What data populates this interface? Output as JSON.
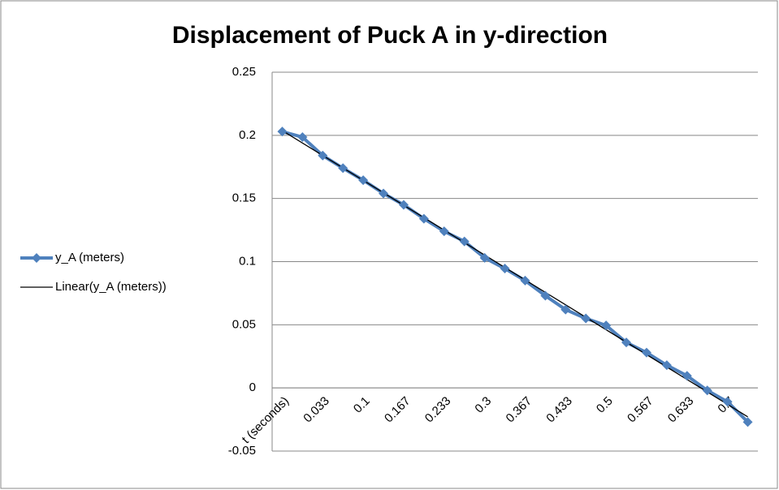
{
  "chart_data": {
    "type": "line",
    "title": "Displacement of Puck A in y-direction",
    "categories": [
      "t (seconds)",
      null,
      "0.033",
      null,
      "0.1",
      null,
      "0.167",
      null,
      "0.233",
      null,
      "0.3",
      null,
      "0.367",
      null,
      "0.433",
      null,
      "0.5",
      null,
      "0.567",
      null,
      "0.633",
      null,
      "0.7",
      null
    ],
    "series": [
      {
        "name": "y_A (meters)",
        "color": "#4f81bd",
        "values": [
          0.203,
          0.1986,
          0.184,
          0.174,
          0.1645,
          0.154,
          0.145,
          0.134,
          0.124,
          0.116,
          0.103,
          0.0945,
          0.085,
          0.073,
          0.062,
          0.055,
          0.0495,
          0.036,
          0.028,
          0.018,
          0.0096,
          -0.002,
          -0.011,
          -0.027
        ]
      }
    ],
    "trendline": {
      "name": "Linear(y_A (meters))",
      "color": "#000000"
    },
    "ylim": [
      -0.05,
      0.25
    ],
    "yticks": [
      -0.05,
      0,
      0.05,
      0.1,
      0.15,
      0.2,
      0.25
    ],
    "grid": true,
    "legend": "left"
  }
}
